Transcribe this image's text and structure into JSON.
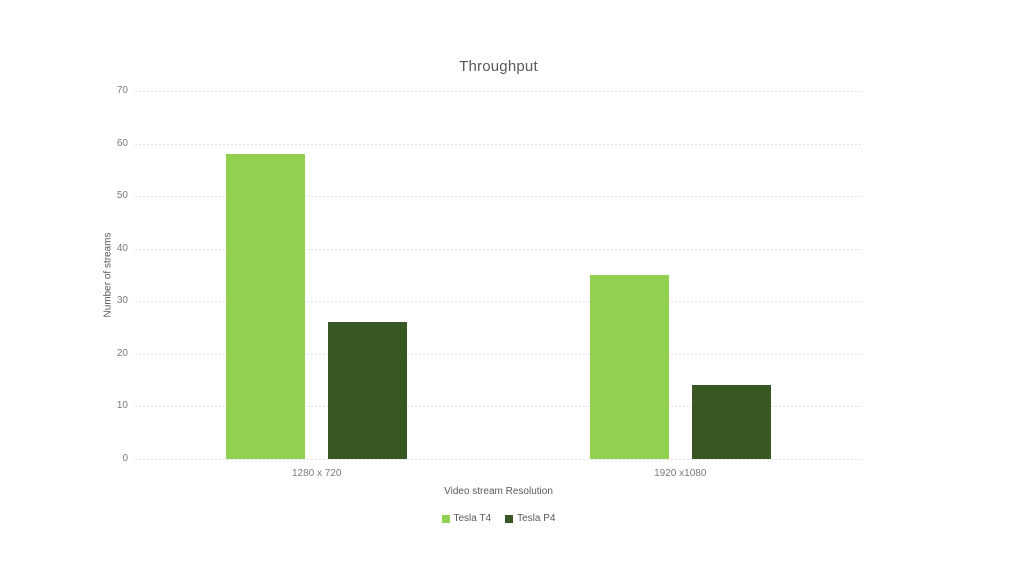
{
  "chart_data": {
    "type": "bar",
    "title": "Throughput",
    "xlabel": "Video stream Resolution",
    "ylabel": "Number of streams",
    "categories": [
      "1280 x 720",
      "1920 x1080"
    ],
    "series": [
      {
        "name": "Tesla T4",
        "color": "#92D050",
        "values": [
          58,
          35
        ]
      },
      {
        "name": "Tesla P4",
        "color": "#385723",
        "values": [
          26,
          14
        ]
      }
    ],
    "ylim": [
      0,
      70
    ],
    "yticks": [
      0,
      10,
      20,
      30,
      40,
      50,
      60,
      70
    ],
    "grid": true,
    "gridline_color": "#e2e2e2",
    "legend_position": "bottom",
    "text_color": "#595959",
    "tick_color": "#7a7a7a",
    "background_color": "#ffffff"
  }
}
